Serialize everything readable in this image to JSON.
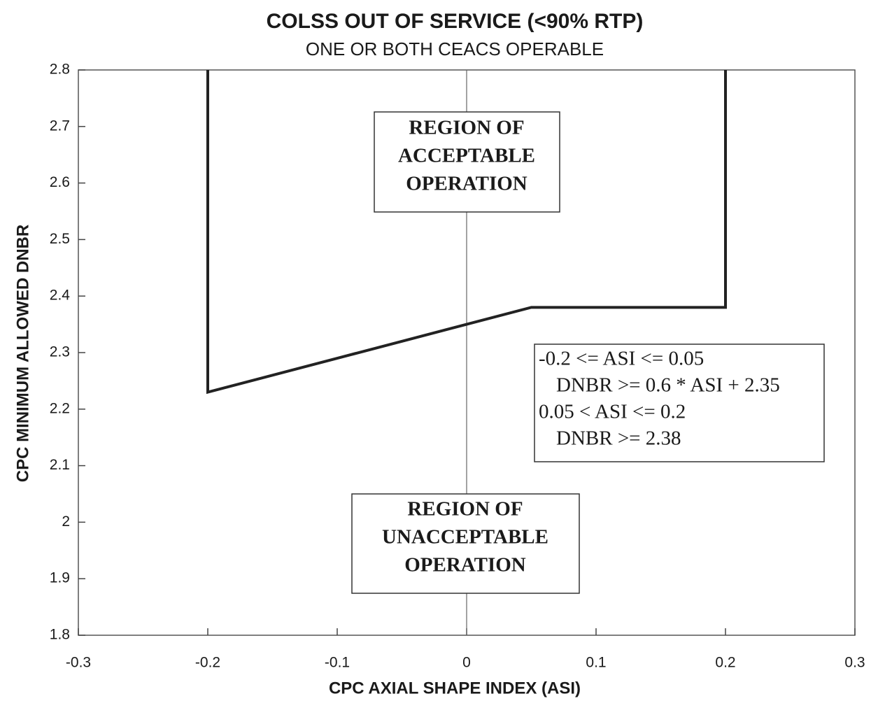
{
  "chart_data": {
    "type": "line",
    "title": "COLSS OUT OF SERVICE (<90% RTP)",
    "subtitle": "ONE OR BOTH CEACS OPERABLE",
    "x_label": "CPC AXIAL SHAPE INDEX (ASI)",
    "y_label": "CPC MINIMUM ALLOWED DNBR",
    "x": [
      -0.2,
      -0.2,
      0.05,
      0.2,
      0.2
    ],
    "series": [
      {
        "color": "#222222",
        "values": [
          2.8,
          2.23,
          2.38,
          2.38,
          2.8
        ]
      }
    ],
    "xlim": [
      -0.3,
      0.3
    ],
    "xticks": [
      -0.3,
      -0.2,
      -0.1,
      0,
      0.1,
      0.2,
      0.3
    ],
    "ylim": [
      1.8,
      2.8
    ],
    "yticks": [
      1.8,
      1.9,
      2,
      2.1,
      2.2,
      2.3,
      2.4,
      2.5,
      2.6,
      2.7,
      2.8
    ],
    "annotations": {
      "acceptable": [
        "REGION OF",
        "ACCEPTABLE",
        "OPERATION"
      ],
      "unacceptable": [
        "REGION OF",
        "UNACCEPTABLE",
        "OPERATION"
      ],
      "formula": [
        "-0.2 <= ASI <= 0.05",
        "DNBR >= 0.6 * ASI + 2.35",
        "0.05 < ASI <= 0.2",
        "DNBR >= 2.38"
      ]
    }
  }
}
